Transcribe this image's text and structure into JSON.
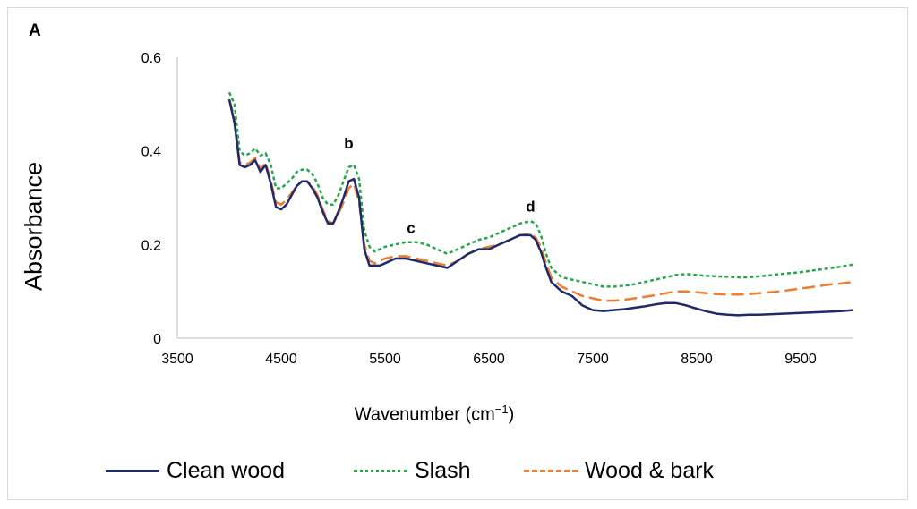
{
  "chart_data": {
    "type": "line",
    "panel_label": "A",
    "xlabel": "Wavenumber (cm",
    "xlabel_sup": "−1",
    "xlabel_close": ")",
    "ylabel": "Absorbance",
    "xlim": [
      3500,
      10000
    ],
    "ylim": [
      0,
      0.6
    ],
    "xticks": [
      "3500",
      "4500",
      "5500",
      "6500",
      "7500",
      "8500",
      "9500"
    ],
    "yticks": [
      "0",
      "0.2",
      "0.4",
      "0.6"
    ],
    "grid": false,
    "legend_position": "bottom",
    "annotations": [
      {
        "text": "b",
        "x": 5150,
        "y": 0.405
      },
      {
        "text": "c",
        "x": 5750,
        "y": 0.225
      },
      {
        "text": "d",
        "x": 6900,
        "y": 0.27
      }
    ],
    "series": [
      {
        "name": "Clean wood",
        "color": "#1f2a6b",
        "style": "solid",
        "x": [
          4000,
          4050,
          4100,
          4150,
          4200,
          4250,
          4300,
          4350,
          4400,
          4450,
          4500,
          4550,
          4600,
          4650,
          4700,
          4750,
          4800,
          4850,
          4900,
          4950,
          5000,
          5050,
          5100,
          5150,
          5200,
          5250,
          5300,
          5350,
          5400,
          5450,
          5500,
          5600,
          5700,
          5800,
          5900,
          6000,
          6100,
          6200,
          6300,
          6400,
          6500,
          6600,
          6700,
          6800,
          6900,
          6950,
          7000,
          7050,
          7100,
          7200,
          7300,
          7400,
          7500,
          7600,
          7700,
          7800,
          7900,
          8000,
          8100,
          8200,
          8300,
          8400,
          8500,
          8600,
          8700,
          8800,
          8900,
          9000,
          9100,
          9200,
          9300,
          9400,
          9500,
          9600,
          9700,
          9800,
          9900,
          10000
        ],
        "y": [
          0.51,
          0.46,
          0.37,
          0.365,
          0.37,
          0.38,
          0.355,
          0.37,
          0.33,
          0.28,
          0.275,
          0.285,
          0.305,
          0.325,
          0.335,
          0.335,
          0.32,
          0.3,
          0.27,
          0.245,
          0.245,
          0.27,
          0.3,
          0.335,
          0.34,
          0.3,
          0.19,
          0.155,
          0.155,
          0.155,
          0.16,
          0.17,
          0.17,
          0.165,
          0.16,
          0.155,
          0.15,
          0.165,
          0.18,
          0.19,
          0.19,
          0.2,
          0.21,
          0.22,
          0.22,
          0.21,
          0.185,
          0.15,
          0.12,
          0.1,
          0.09,
          0.07,
          0.06,
          0.058,
          0.06,
          0.062,
          0.065,
          0.068,
          0.072,
          0.075,
          0.075,
          0.07,
          0.063,
          0.057,
          0.052,
          0.05,
          0.049,
          0.05,
          0.05,
          0.051,
          0.052,
          0.053,
          0.054,
          0.055,
          0.056,
          0.057,
          0.058,
          0.06
        ]
      },
      {
        "name": "Slash",
        "color": "#22a84a",
        "style": "dotted",
        "x": [
          4000,
          4050,
          4100,
          4150,
          4200,
          4250,
          4300,
          4350,
          4400,
          4450,
          4500,
          4550,
          4600,
          4650,
          4700,
          4750,
          4800,
          4850,
          4900,
          4950,
          5000,
          5050,
          5100,
          5150,
          5200,
          5250,
          5300,
          5350,
          5400,
          5450,
          5500,
          5600,
          5700,
          5800,
          5900,
          6000,
          6100,
          6200,
          6300,
          6400,
          6500,
          6600,
          6700,
          6800,
          6900,
          6950,
          7000,
          7050,
          7100,
          7200,
          7300,
          7400,
          7500,
          7600,
          7700,
          7800,
          7900,
          8000,
          8100,
          8200,
          8300,
          8400,
          8500,
          8600,
          8700,
          8800,
          8900,
          9000,
          9100,
          9200,
          9300,
          9400,
          9500,
          9600,
          9700,
          9800,
          9900,
          10000
        ],
        "y": [
          0.525,
          0.5,
          0.4,
          0.39,
          0.395,
          0.405,
          0.39,
          0.395,
          0.37,
          0.32,
          0.32,
          0.33,
          0.34,
          0.355,
          0.36,
          0.36,
          0.35,
          0.33,
          0.3,
          0.285,
          0.285,
          0.305,
          0.335,
          0.365,
          0.37,
          0.34,
          0.23,
          0.195,
          0.185,
          0.19,
          0.195,
          0.2,
          0.205,
          0.205,
          0.2,
          0.19,
          0.18,
          0.19,
          0.2,
          0.21,
          0.215,
          0.225,
          0.235,
          0.245,
          0.25,
          0.245,
          0.22,
          0.18,
          0.15,
          0.13,
          0.125,
          0.12,
          0.115,
          0.11,
          0.11,
          0.112,
          0.115,
          0.12,
          0.125,
          0.13,
          0.135,
          0.137,
          0.135,
          0.133,
          0.132,
          0.131,
          0.13,
          0.13,
          0.132,
          0.134,
          0.137,
          0.139,
          0.141,
          0.144,
          0.147,
          0.15,
          0.153,
          0.157
        ]
      },
      {
        "name": "Wood & bark",
        "color": "#ed7d31",
        "style": "dashed",
        "x": [
          4000,
          4050,
          4100,
          4150,
          4200,
          4250,
          4300,
          4350,
          4400,
          4450,
          4500,
          4550,
          4600,
          4650,
          4700,
          4750,
          4800,
          4850,
          4900,
          4950,
          5000,
          5050,
          5100,
          5150,
          5200,
          5250,
          5300,
          5350,
          5400,
          5450,
          5500,
          5600,
          5700,
          5800,
          5900,
          6000,
          6100,
          6200,
          6300,
          6400,
          6500,
          6600,
          6700,
          6800,
          6900,
          6950,
          7000,
          7050,
          7100,
          7200,
          7300,
          7400,
          7500,
          7600,
          7700,
          7800,
          7900,
          8000,
          8100,
          8200,
          8300,
          8400,
          8500,
          8600,
          8700,
          8800,
          8900,
          9000,
          9100,
          9200,
          9300,
          9400,
          9500,
          9600,
          9700,
          9800,
          9900,
          10000
        ],
        "y": [
          0.51,
          0.47,
          0.375,
          0.37,
          0.375,
          0.385,
          0.36,
          0.375,
          0.335,
          0.29,
          0.285,
          0.295,
          0.31,
          0.325,
          0.335,
          0.335,
          0.325,
          0.305,
          0.275,
          0.25,
          0.245,
          0.265,
          0.29,
          0.32,
          0.33,
          0.29,
          0.2,
          0.165,
          0.16,
          0.165,
          0.17,
          0.175,
          0.175,
          0.17,
          0.165,
          0.16,
          0.155,
          0.165,
          0.18,
          0.19,
          0.195,
          0.2,
          0.21,
          0.22,
          0.222,
          0.215,
          0.195,
          0.16,
          0.13,
          0.11,
          0.1,
          0.09,
          0.085,
          0.08,
          0.08,
          0.082,
          0.085,
          0.088,
          0.092,
          0.096,
          0.1,
          0.1,
          0.098,
          0.096,
          0.094,
          0.093,
          0.093,
          0.094,
          0.096,
          0.098,
          0.1,
          0.103,
          0.106,
          0.109,
          0.112,
          0.115,
          0.117,
          0.12
        ]
      }
    ]
  }
}
